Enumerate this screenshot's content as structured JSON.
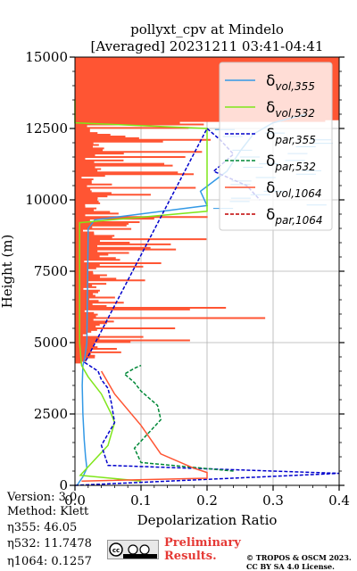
{
  "chart_data": {
    "type": "line",
    "title": "pollyxt_cpv at Mindelo",
    "subtitle": "[Averaged] 20231211 03:41-04:41",
    "xlabel": "Depolarization Ratio",
    "ylabel": "Height (m)",
    "xlim": [
      0.0,
      0.4
    ],
    "ylim": [
      0,
      15000
    ],
    "xticks": [
      "0.0",
      "0.1",
      "0.2",
      "0.3",
      "0.4"
    ],
    "yticks": [
      "0",
      "2500",
      "5000",
      "7500",
      "10000",
      "12500",
      "15000"
    ],
    "grid": true,
    "legend_position": "top-right",
    "series": [
      {
        "name": "δvol,355",
        "color": "#3399e6",
        "style": "solid",
        "x": [
          0.003,
          0.012,
          0.018,
          0.016,
          0.014,
          0.012,
          0.011,
          0.012,
          0.015,
          0.018,
          0.02,
          0.03,
          0.2,
          0.19,
          0.23,
          0.25,
          0.27,
          0.3,
          0.35
        ],
        "y": [
          0,
          300,
          600,
          1000,
          1600,
          2500,
          3500,
          4200,
          4500,
          5000,
          9000,
          9300,
          9800,
          10300,
          11000,
          11700,
          12300,
          12700,
          13000
        ]
      },
      {
        "name": "δvol,532",
        "color": "#7fe61a",
        "style": "solid",
        "x": [
          0.1,
          0.008,
          0.05,
          0.06,
          0.055,
          0.04,
          0.02,
          0.01,
          0.007,
          0.007,
          0.2,
          0.2,
          0.0,
          0.0
        ],
        "y": [
          150,
          350,
          1400,
          2200,
          2500,
          3200,
          3800,
          4200,
          5000,
          9200,
          9600,
          12500,
          12700,
          13500
        ]
      },
      {
        "name": "δpar,355",
        "color": "#0000cc",
        "style": "dashed",
        "x": [
          0.0,
          0.4,
          0.05,
          0.04,
          0.06,
          0.055,
          0.05,
          0.04,
          0.035,
          0.025,
          0.015,
          0.2,
          0.22,
          0.24,
          0.21,
          0.26,
          0.28
        ],
        "y": [
          0,
          420,
          700,
          1400,
          2200,
          2900,
          3400,
          3700,
          4000,
          4150,
          4300,
          12500,
          12100,
          11600,
          11000,
          10500,
          10000
        ]
      },
      {
        "name": "δpar,532",
        "color": "#008837",
        "style": "dashed",
        "x": [
          0.24,
          0.1,
          0.09,
          0.13,
          0.125,
          0.1,
          0.09,
          0.075,
          0.09,
          0.1
        ],
        "y": [
          500,
          800,
          1300,
          2300,
          2800,
          3300,
          3600,
          3900,
          4100,
          4200
        ]
      },
      {
        "name": "δvol,1064",
        "color": "#ff5533",
        "style": "solid",
        "x": [
          0.01,
          0.2,
          0.2,
          0.18,
          0.13,
          0.1,
          0.06,
          0.04
        ],
        "y": [
          150,
          250,
          450,
          600,
          1100,
          2100,
          3200,
          4000
        ]
      },
      {
        "name": "δpar,1064",
        "color": "#c00000",
        "style": "dashed",
        "x": [],
        "y": []
      }
    ]
  },
  "legend": [
    {
      "main": "δ",
      "sub": "vol,355",
      "color": "#3399e6",
      "dash": false
    },
    {
      "main": "δ",
      "sub": "vol,532",
      "color": "#7fe61a",
      "dash": false
    },
    {
      "main": "δ",
      "sub": "par,355",
      "color": "#0000cc",
      "dash": true
    },
    {
      "main": "δ",
      "sub": "par,532",
      "color": "#008837",
      "dash": true
    },
    {
      "main": "δ",
      "sub": "vol,1064",
      "color": "#ff5533",
      "dash": false
    },
    {
      "main": "δ",
      "sub": "par,1064",
      "color": "#c00000",
      "dash": true
    }
  ],
  "meta": {
    "version": "Version: 3.0",
    "method": "Method: Klett",
    "eta355": "η355:  46.05",
    "eta532": "η532: 11.7478",
    "eta1064": "η1064: 0.1257"
  },
  "footer": {
    "preliminary_line1": "Preliminary",
    "preliminary_line2": "Results.",
    "copyright_line1": "© TROPOS & OSCM 2023.",
    "copyright_line2": "CC BY SA 4.0 License.",
    "cc_text": "cc"
  }
}
